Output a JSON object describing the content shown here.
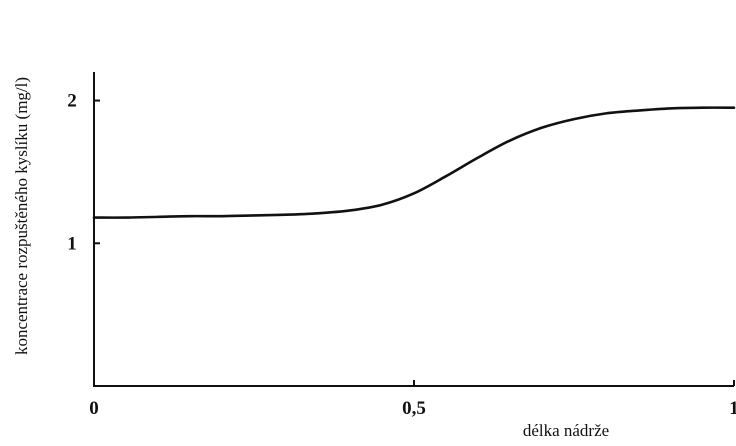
{
  "chart_data": {
    "type": "line",
    "title": "",
    "xlabel": "délka nádrže",
    "ylabel": "koncentrace rozpuštěného kyslíku (mg/l)",
    "xlim": [
      0,
      1
    ],
    "ylim": [
      0,
      2.2
    ],
    "grid": false,
    "x_ticks": [
      {
        "value": 0,
        "label": "0"
      },
      {
        "value": 0.5,
        "label": "0,5"
      },
      {
        "value": 1,
        "label": "1"
      }
    ],
    "y_ticks": [
      {
        "value": 1,
        "label": "1"
      },
      {
        "value": 2,
        "label": "2"
      }
    ],
    "series": [
      {
        "x": [
          0,
          0.05,
          0.1,
          0.15,
          0.2,
          0.25,
          0.3,
          0.35,
          0.4,
          0.45,
          0.5,
          0.55,
          0.6,
          0.65,
          0.7,
          0.75,
          0.8,
          0.85,
          0.9,
          0.95,
          1.0
        ],
        "y": [
          1.18,
          1.18,
          1.185,
          1.19,
          1.19,
          1.195,
          1.2,
          1.21,
          1.23,
          1.27,
          1.35,
          1.47,
          1.6,
          1.72,
          1.81,
          1.87,
          1.91,
          1.93,
          1.945,
          1.95,
          1.95
        ]
      }
    ]
  }
}
